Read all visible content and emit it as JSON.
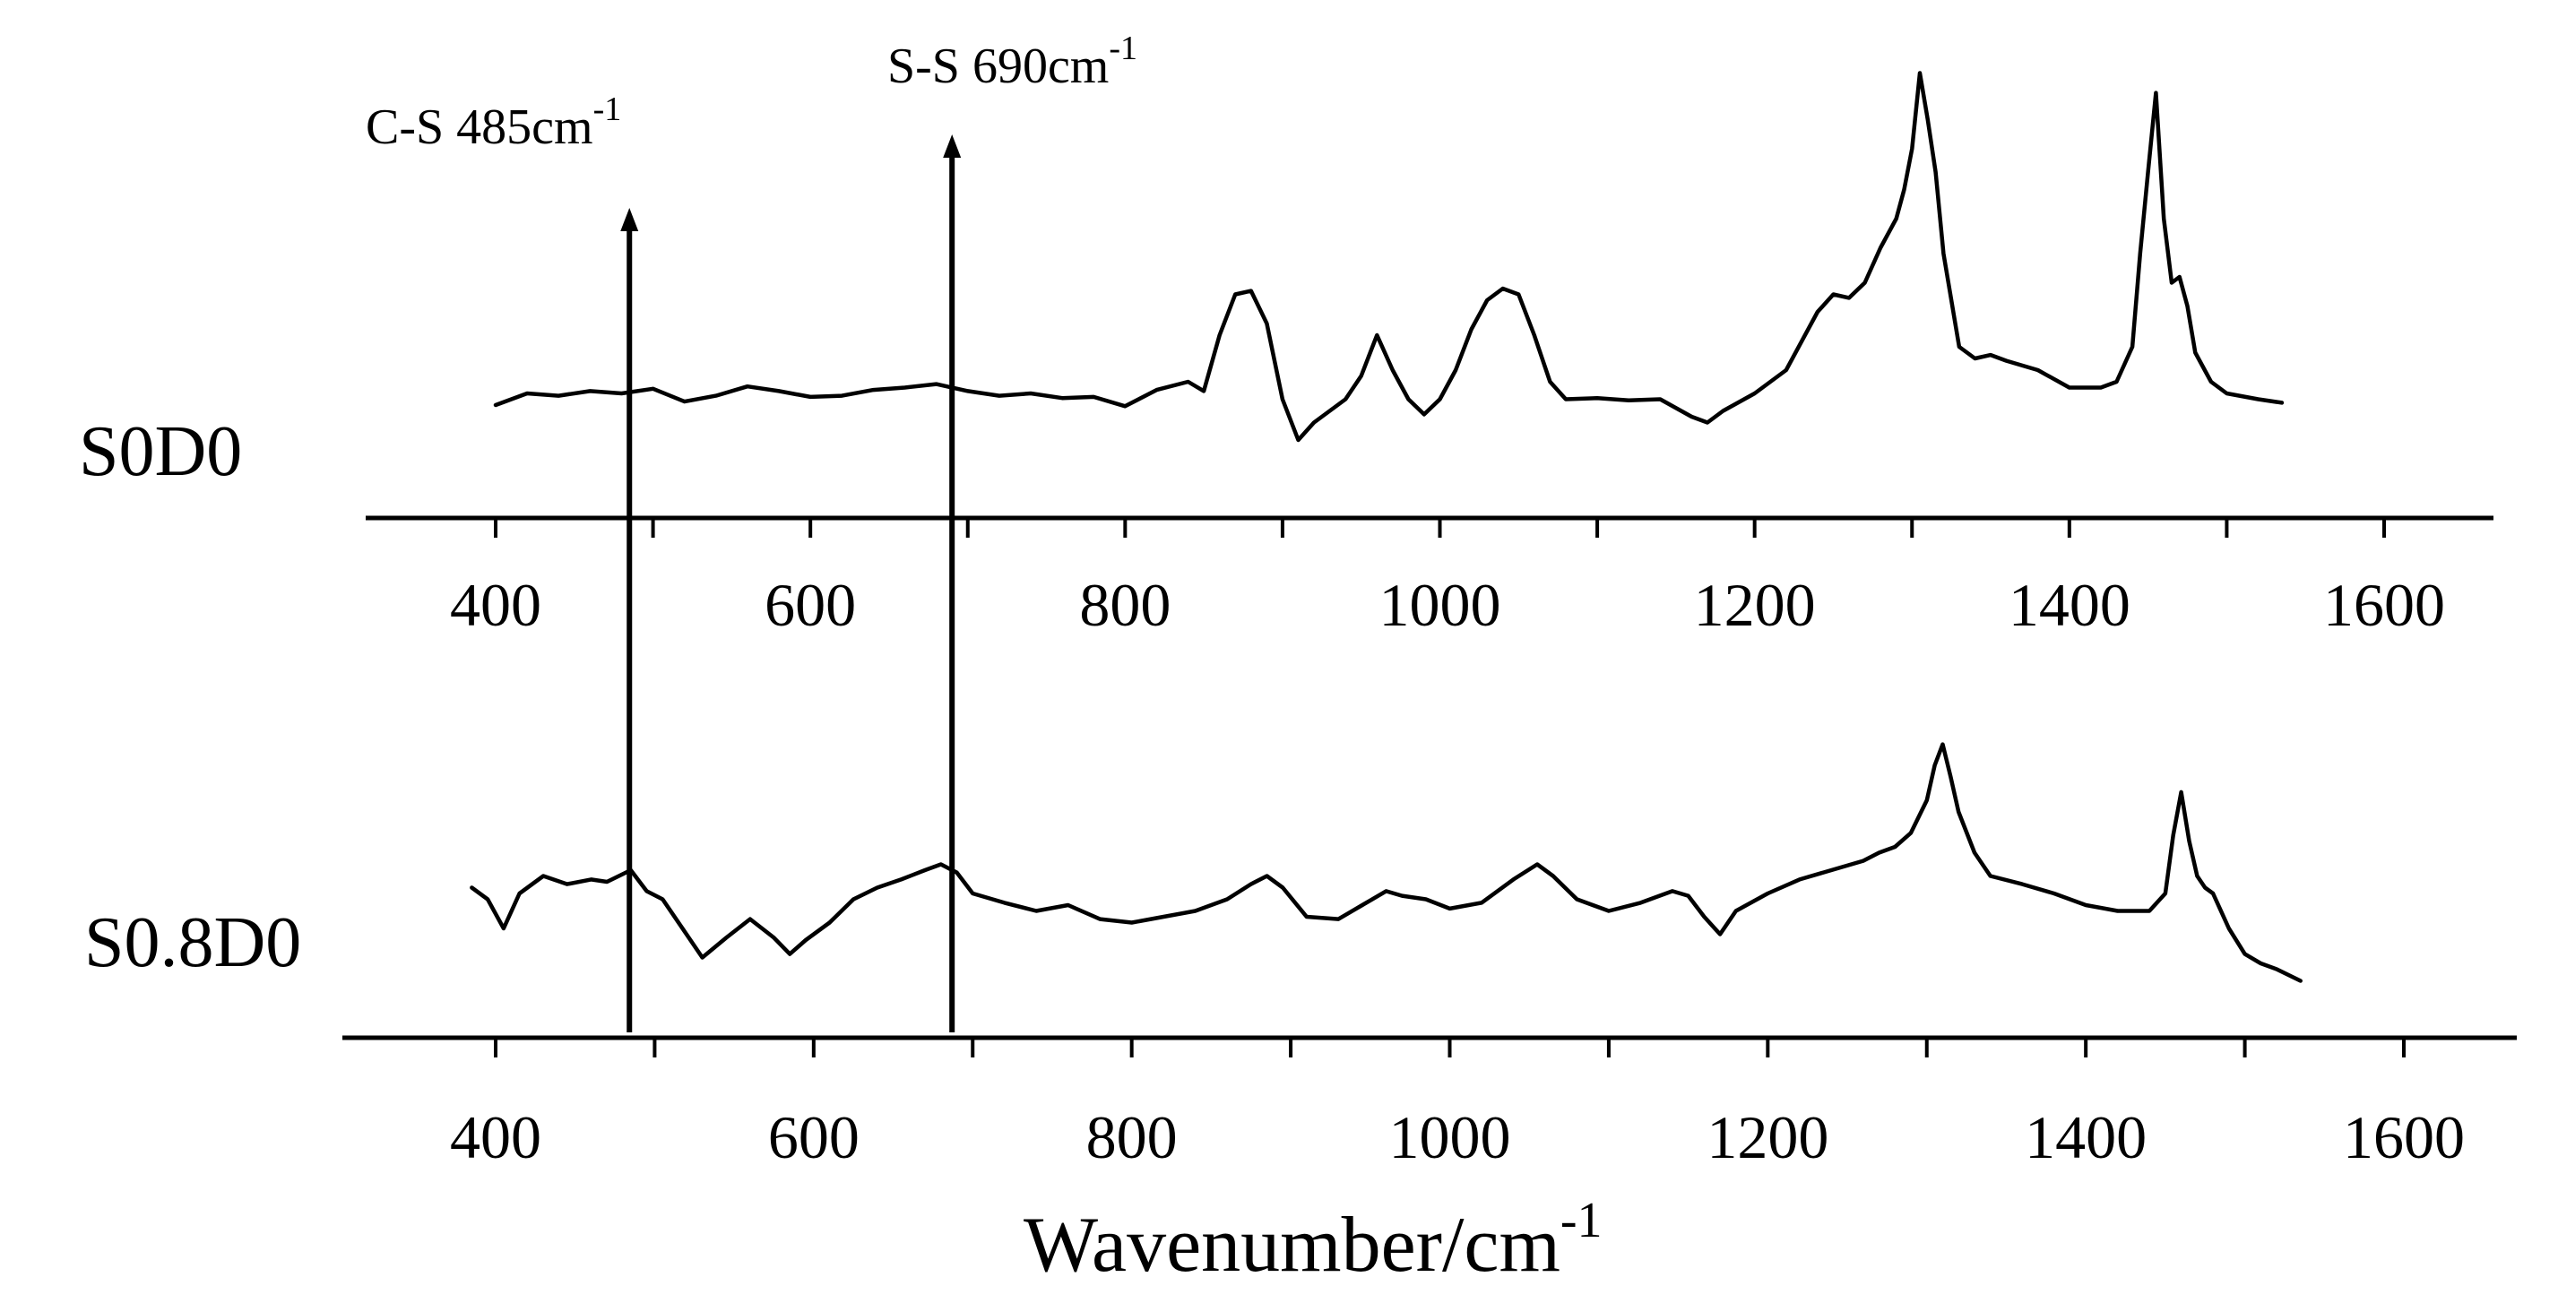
{
  "chart_data": {
    "type": "line",
    "title": "",
    "xlabel": "Wavenumber/cm",
    "xlabel_superscript": "-1",
    "ylabel": "",
    "xlim": [
      320,
      1700
    ],
    "xticks": [
      400,
      600,
      800,
      1000,
      1200,
      1400,
      1600
    ],
    "grid": false,
    "panels": [
      {
        "name": "S0D0",
        "x": [
          400,
          420,
          440,
          460,
          480,
          500,
          520,
          540,
          560,
          580,
          600,
          620,
          640,
          660,
          680,
          700,
          720,
          740,
          760,
          780,
          800,
          820,
          840,
          850,
          860,
          870,
          880,
          890,
          900,
          910,
          920,
          930,
          940,
          950,
          960,
          970,
          980,
          990,
          1000,
          1010,
          1020,
          1030,
          1040,
          1050,
          1060,
          1070,
          1080,
          1100,
          1120,
          1140,
          1160,
          1170,
          1180,
          1200,
          1220,
          1240,
          1250,
          1260,
          1270,
          1280,
          1290,
          1295,
          1300,
          1305,
          1310,
          1315,
          1320,
          1330,
          1340,
          1350,
          1360,
          1380,
          1400,
          1420,
          1430,
          1440,
          1445,
          1450,
          1455,
          1460,
          1465,
          1470,
          1475,
          1480,
          1490,
          1500,
          1520,
          1535
        ],
        "values": [
          0,
          0.1,
          0.08,
          0.12,
          0.1,
          0.14,
          0.03,
          0.08,
          0.16,
          0.12,
          0.07,
          0.08,
          0.13,
          0.15,
          0.18,
          0.12,
          0.08,
          0.1,
          0.06,
          0.07,
          -0.01,
          0.13,
          0.2,
          0.12,
          0.6,
          0.95,
          0.98,
          0.7,
          0.05,
          -0.3,
          -0.15,
          -0.05,
          0.05,
          0.25,
          0.6,
          0.3,
          0.05,
          -0.08,
          0.05,
          0.3,
          0.65,
          0.9,
          1.0,
          0.95,
          0.6,
          0.2,
          0.05,
          0.06,
          0.04,
          0.05,
          -0.1,
          -0.15,
          -0.05,
          0.1,
          0.3,
          0.8,
          0.95,
          0.92,
          1.05,
          1.35,
          1.6,
          1.85,
          2.2,
          2.85,
          2.45,
          2.0,
          1.3,
          0.5,
          0.4,
          0.43,
          0.38,
          0.3,
          0.15,
          0.15,
          0.2,
          0.5,
          1.3,
          2.0,
          2.68,
          1.6,
          1.05,
          1.1,
          0.85,
          0.45,
          0.2,
          0.1,
          0.05,
          0.02
        ]
      },
      {
        "name": "S0.8D0",
        "x": [
          385,
          395,
          405,
          415,
          430,
          445,
          460,
          470,
          485,
          495,
          505,
          520,
          530,
          545,
          560,
          575,
          585,
          595,
          610,
          625,
          640,
          655,
          670,
          680,
          690,
          700,
          720,
          740,
          760,
          780,
          800,
          820,
          840,
          860,
          875,
          885,
          895,
          910,
          930,
          945,
          960,
          970,
          985,
          1000,
          1020,
          1040,
          1055,
          1065,
          1080,
          1100,
          1120,
          1140,
          1150,
          1160,
          1170,
          1180,
          1200,
          1220,
          1240,
          1260,
          1270,
          1280,
          1290,
          1300,
          1305,
          1310,
          1315,
          1320,
          1330,
          1340,
          1360,
          1380,
          1400,
          1420,
          1440,
          1450,
          1455,
          1460,
          1465,
          1470,
          1475,
          1480,
          1490,
          1500,
          1510,
          1520,
          1535
        ],
        "values": [
          0.15,
          0.05,
          -0.2,
          0.1,
          0.25,
          0.18,
          0.22,
          0.2,
          0.3,
          0.12,
          0.05,
          -0.25,
          -0.45,
          -0.28,
          -0.12,
          -0.28,
          -0.42,
          -0.3,
          -0.15,
          0.05,
          0.15,
          0.22,
          0.3,
          0.35,
          0.28,
          0.1,
          0.02,
          -0.05,
          0.0,
          -0.12,
          -0.15,
          -0.1,
          -0.05,
          0.05,
          0.18,
          0.25,
          0.15,
          -0.1,
          -0.12,
          0.0,
          0.12,
          0.08,
          0.05,
          -0.03,
          0.02,
          0.22,
          0.35,
          0.25,
          0.05,
          -0.05,
          0.02,
          0.12,
          0.08,
          -0.1,
          -0.25,
          -0.05,
          0.1,
          0.22,
          0.3,
          0.38,
          0.45,
          0.5,
          0.62,
          0.9,
          1.2,
          1.38,
          1.1,
          0.8,
          0.45,
          0.25,
          0.18,
          0.1,
          0.0,
          -0.05,
          -0.05,
          0.1,
          0.6,
          0.97,
          0.55,
          0.25,
          0.15,
          0.1,
          -0.2,
          -0.42,
          -0.5,
          -0.55,
          -0.65
        ]
      }
    ],
    "annotations": [
      {
        "label": "C-S 485cm",
        "superscript": "-1",
        "x": 485
      },
      {
        "label": "S-S 690cm",
        "superscript": "-1",
        "x": 690
      }
    ]
  }
}
